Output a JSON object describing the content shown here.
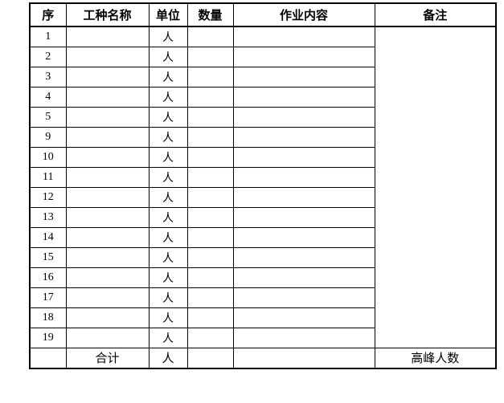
{
  "colors": {
    "border": "#000000",
    "background": "#ffffff",
    "text": "#000000"
  },
  "table": {
    "headers": [
      "序",
      "工种名称",
      "单位",
      "数量",
      "作业内容",
      "备注"
    ],
    "rows": [
      {
        "seq": "1",
        "name": "",
        "unit": "人",
        "qty": "",
        "content": ""
      },
      {
        "seq": "2",
        "name": "",
        "unit": "人",
        "qty": "",
        "content": ""
      },
      {
        "seq": "3",
        "name": "",
        "unit": "人",
        "qty": "",
        "content": ""
      },
      {
        "seq": "4",
        "name": "",
        "unit": "人",
        "qty": "",
        "content": ""
      },
      {
        "seq": "5",
        "name": "",
        "unit": "人",
        "qty": "",
        "content": ""
      },
      {
        "seq": "9",
        "name": "",
        "unit": "人",
        "qty": "",
        "content": ""
      },
      {
        "seq": "10",
        "name": "",
        "unit": "人",
        "qty": "",
        "content": ""
      },
      {
        "seq": "11",
        "name": "",
        "unit": "人",
        "qty": "",
        "content": ""
      },
      {
        "seq": "12",
        "name": "",
        "unit": "人",
        "qty": "",
        "content": ""
      },
      {
        "seq": "13",
        "name": "",
        "unit": "人",
        "qty": "",
        "content": ""
      },
      {
        "seq": "14",
        "name": "",
        "unit": "人",
        "qty": "",
        "content": ""
      },
      {
        "seq": "15",
        "name": "",
        "unit": "人",
        "qty": "",
        "content": ""
      },
      {
        "seq": "16",
        "name": "",
        "unit": "人",
        "qty": "",
        "content": ""
      },
      {
        "seq": "17",
        "name": "",
        "unit": "人",
        "qty": "",
        "content": ""
      },
      {
        "seq": "18",
        "name": "",
        "unit": "人",
        "qty": "",
        "content": ""
      },
      {
        "seq": "19",
        "name": "",
        "unit": "人",
        "qty": "",
        "content": ""
      }
    ],
    "remarks_merged": "",
    "total": {
      "seq": "",
      "name": "合计",
      "unit": "人",
      "qty": "",
      "content": "",
      "remark": "高峰人数"
    }
  }
}
